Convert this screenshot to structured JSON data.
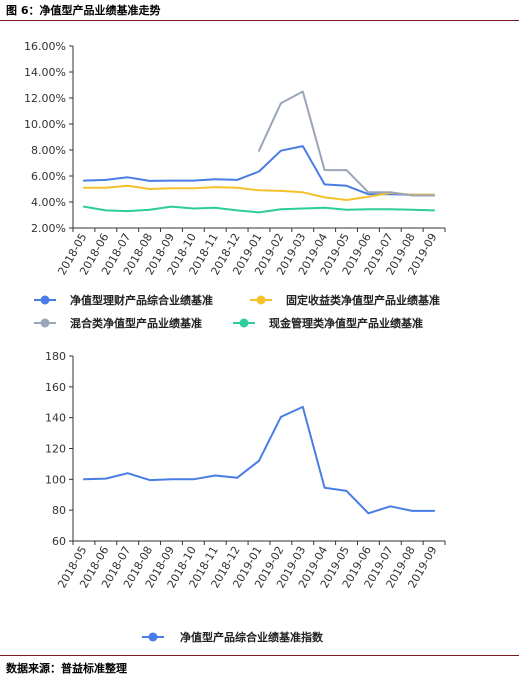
{
  "figure_title": "图 6：净值型产品业绩基准走势",
  "source_note": "数据来源：普益标准整理",
  "chart_data": [
    {
      "type": "line",
      "categories": [
        "2018-05",
        "2018-06",
        "2018-07",
        "2018-08",
        "2018-09",
        "2018-10",
        "2018-11",
        "2018-12",
        "2019-01",
        "2019-02",
        "2019-03",
        "2019-04",
        "2019-05",
        "2019-06",
        "2019-07",
        "2019-08",
        "2019-09"
      ],
      "y_ticks": [
        "16.00%",
        "14.00%",
        "12.00%",
        "10.00%",
        "8.00%",
        "6.00%",
        "4.00%",
        "2.00%"
      ],
      "ylim": [
        2,
        16
      ],
      "grid": false,
      "legend_position": "bottom",
      "series": [
        {
          "name": "净值型理财产品综合业绩基准",
          "color": "#4a7ce6",
          "values": [
            5.65,
            5.7,
            5.9,
            5.62,
            5.65,
            5.65,
            5.75,
            5.7,
            6.35,
            7.95,
            8.3,
            5.35,
            5.25,
            4.6,
            4.6,
            4.55,
            4.55
          ]
        },
        {
          "name": "固定收益类净值型产品业绩基准",
          "color": "#f5c12b",
          "values": [
            5.1,
            5.1,
            5.25,
            5.0,
            5.05,
            5.05,
            5.15,
            5.1,
            4.9,
            4.85,
            4.75,
            4.35,
            4.15,
            4.4,
            4.7,
            4.55,
            4.55
          ]
        },
        {
          "name": "混合类净值型产品业绩基准",
          "color": "#9aa5b8",
          "values": [
            null,
            null,
            null,
            null,
            null,
            null,
            null,
            null,
            7.95,
            11.6,
            12.5,
            6.45,
            6.45,
            4.75,
            4.75,
            4.5,
            4.5
          ]
        },
        {
          "name": "现金管理类净值型产品业绩基准",
          "color": "#2ecb9c",
          "values": [
            3.65,
            3.35,
            3.3,
            3.4,
            3.65,
            3.5,
            3.55,
            3.35,
            3.2,
            3.45,
            3.5,
            3.55,
            3.4,
            3.45,
            3.45,
            3.4,
            3.35
          ]
        }
      ]
    },
    {
      "type": "line",
      "categories": [
        "2018-05",
        "2018-06",
        "2018-07",
        "2018-08",
        "2018-09",
        "2018-10",
        "2018-11",
        "2018-12",
        "2019-01",
        "2019-02",
        "2019-03",
        "2019-04",
        "2019-05",
        "2019-06",
        "2019-07",
        "2019-08",
        "2019-09"
      ],
      "y_ticks": [
        "180",
        "160",
        "140",
        "120",
        "100",
        "80",
        "60"
      ],
      "ylim": [
        60,
        180
      ],
      "grid": false,
      "legend_position": "bottom",
      "series": [
        {
          "name": "净值型产品综合业绩基准指数",
          "color": "#4a7ce6",
          "values": [
            100,
            100.5,
            104,
            99.5,
            100,
            100,
            102.5,
            101,
            112,
            140.5,
            147,
            94.5,
            92.5,
            78,
            82.5,
            79.5,
            79.5
          ]
        }
      ]
    }
  ]
}
